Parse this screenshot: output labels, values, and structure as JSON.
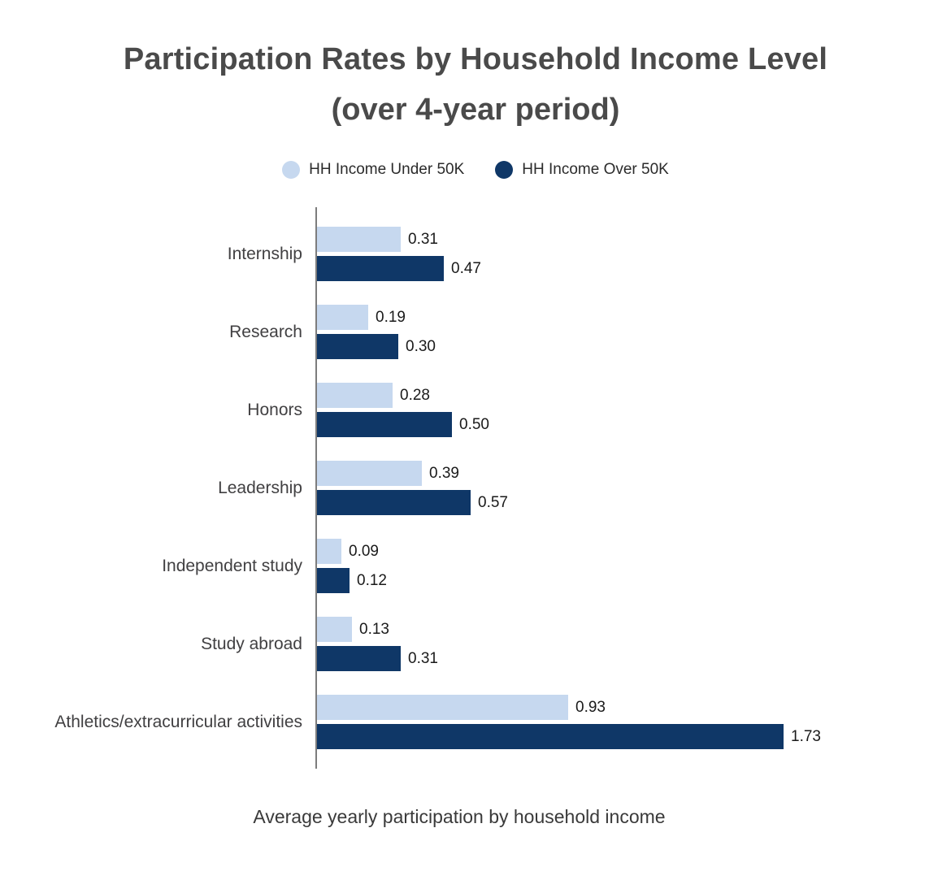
{
  "title": {
    "line1": "Participation Rates by Household Income Level",
    "line2": "(over 4-year period)"
  },
  "legend": {
    "items": [
      {
        "label": "HH Income Under 50K",
        "color": "#c6d8ef"
      },
      {
        "label": "HH Income Over 50K",
        "color": "#0f3767"
      }
    ]
  },
  "chart_data": {
    "type": "bar",
    "orientation": "horizontal",
    "title": "Participation Rates by Household Income Level (over 4-year period)",
    "xlabel": "Average yearly participation by household income",
    "categories": [
      "Internship",
      "Research",
      "Honors",
      "Leadership",
      "Independent study",
      "Study abroad",
      "Athletics/extracurricular activities"
    ],
    "series": [
      {
        "name": "HH Income Under 50K",
        "color": "#c6d8ef",
        "values": [
          0.31,
          0.19,
          0.28,
          0.39,
          0.09,
          0.13,
          0.93
        ]
      },
      {
        "name": "HH Income Over 50K",
        "color": "#0f3767",
        "values": [
          0.47,
          0.3,
          0.5,
          0.57,
          0.12,
          0.31,
          1.73
        ]
      }
    ],
    "xlim": [
      0,
      1.73
    ],
    "grid": false,
    "legend_position": "top",
    "value_label_format": "0.00"
  },
  "colors": {
    "axis": "#7d7d7d",
    "title_text": "#4a4a4a",
    "category_text": "#414042",
    "value_text": "#1a1a1a"
  }
}
